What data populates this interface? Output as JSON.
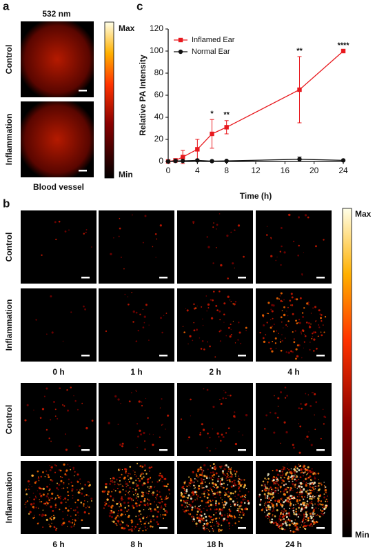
{
  "panel_labels": [
    "a",
    "b",
    "c"
  ],
  "panel_a": {
    "wavelength": "532 nm",
    "rows": [
      "Control",
      "Inflammation"
    ],
    "colorbar": [
      "Max",
      "Min"
    ],
    "caption": "Blood vessel"
  },
  "panel_b": {
    "rows": [
      "Control",
      "Inflammation",
      "Control",
      "Inflammation"
    ],
    "times": [
      "0 h",
      "1 h",
      "2 h",
      "4 h",
      "6 h",
      "8 h",
      "18 h",
      "24 h"
    ],
    "colorbar": [
      "Max",
      "Min"
    ]
  },
  "chart_data": {
    "type": "line",
    "xlabel": "Time (h)",
    "ylabel": "Relative PA Intensity",
    "x": [
      0,
      1,
      2,
      4,
      6,
      8,
      18,
      24
    ],
    "xlim": [
      0,
      24
    ],
    "ylim": [
      0,
      120
    ],
    "xticks": [
      0,
      4,
      8,
      12,
      16,
      20,
      24
    ],
    "yticks": [
      0,
      20,
      40,
      60,
      80,
      100,
      120
    ],
    "legend": "upper left",
    "series": [
      {
        "name": "Inflamed Ear",
        "color": "#e8191e",
        "marker": "square",
        "values": [
          0,
          1,
          4,
          11,
          25,
          31,
          65,
          100
        ],
        "errors": [
          0,
          1,
          6,
          9,
          13,
          6,
          30,
          0
        ]
      },
      {
        "name": "Normal Ear",
        "color": "#111111",
        "marker": "circle",
        "values": [
          0,
          0.5,
          0.5,
          1,
          0.3,
          0.5,
          2,
          1
        ],
        "errors": [
          0,
          0,
          0,
          0,
          0,
          0,
          2,
          0
        ]
      }
    ],
    "annotations": [
      {
        "x": 6,
        "text": "*"
      },
      {
        "x": 8,
        "text": "**"
      },
      {
        "x": 18,
        "text": "**"
      },
      {
        "x": 24,
        "text": "****"
      }
    ]
  }
}
